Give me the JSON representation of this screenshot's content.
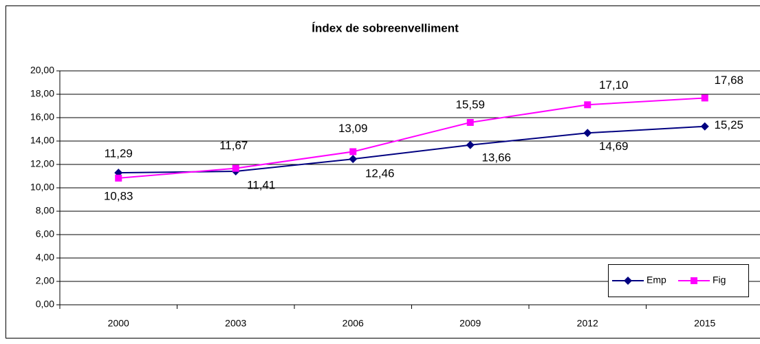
{
  "chart_data": {
    "type": "line",
    "title": "Índex de sobreenvelliment",
    "categories": [
      "2000",
      "2003",
      "2006",
      "2009",
      "2012",
      "2015"
    ],
    "series": [
      {
        "name": "Emp",
        "color": "#000080",
        "marker": "diamond",
        "values": [
          11.29,
          11.41,
          12.46,
          13.66,
          14.69,
          15.25
        ],
        "value_labels": [
          "11,29",
          "11,41",
          "12,46",
          "13,66",
          "14,69",
          "15,25"
        ]
      },
      {
        "name": "Fig",
        "color": "#ff00ff",
        "marker": "square",
        "values": [
          10.83,
          11.67,
          13.09,
          15.59,
          17.1,
          17.68
        ],
        "value_labels": [
          "10,83",
          "11,67",
          "13,09",
          "15,59",
          "17,10",
          "17,68"
        ]
      }
    ],
    "ylim": [
      0,
      20
    ],
    "yticks": [
      {
        "value": 0,
        "label": "0,00"
      },
      {
        "value": 2,
        "label": "2,00"
      },
      {
        "value": 4,
        "label": "4,00"
      },
      {
        "value": 6,
        "label": "6,00"
      },
      {
        "value": 8,
        "label": "8,00"
      },
      {
        "value": 10,
        "label": "10,00"
      },
      {
        "value": 12,
        "label": "12,00"
      },
      {
        "value": 14,
        "label": "14,00"
      },
      {
        "value": 16,
        "label": "16,00"
      },
      {
        "value": 18,
        "label": "18,00"
      },
      {
        "value": 20,
        "label": "20,00"
      }
    ],
    "grid": true,
    "legend": "bottom-right"
  }
}
